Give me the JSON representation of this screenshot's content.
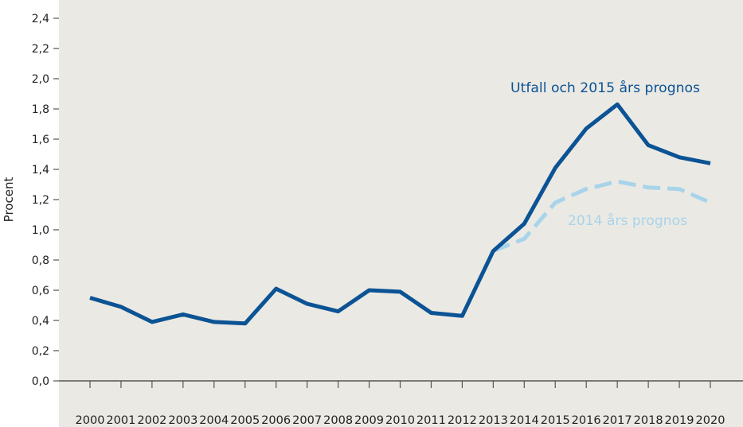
{
  "chart_data": {
    "type": "line",
    "title": "",
    "xlabel": "",
    "ylabel": "Procent",
    "ylim": [
      0,
      2.4
    ],
    "yticks": [
      "0,0",
      "0,2",
      "0,4",
      "0,6",
      "0,8",
      "1,0",
      "1,2",
      "1,4",
      "1,6",
      "1,8",
      "2,0",
      "2,2",
      "2,4"
    ],
    "x": [
      "2000",
      "2001",
      "2002",
      "2003",
      "2004",
      "2005",
      "2006",
      "2007",
      "2008",
      "2009",
      "2010",
      "2011",
      "2012",
      "2013",
      "2014",
      "2015",
      "2016",
      "2017",
      "2018",
      "2019",
      "2020"
    ],
    "grid": false,
    "legend": "inline labels",
    "series": [
      {
        "name": "Utfall och 2015 års prognos",
        "style": "solid",
        "color": "#0b5394",
        "x": [
          "2000",
          "2001",
          "2002",
          "2003",
          "2004",
          "2005",
          "2006",
          "2007",
          "2008",
          "2009",
          "2010",
          "2011",
          "2012",
          "2013",
          "2014",
          "2015",
          "2016",
          "2017",
          "2018",
          "2019",
          "2020"
        ],
        "values": [
          0.55,
          0.49,
          0.39,
          0.44,
          0.39,
          0.38,
          0.61,
          0.51,
          0.46,
          0.6,
          0.59,
          0.45,
          0.43,
          0.86,
          1.04,
          1.41,
          1.67,
          1.83,
          1.56,
          1.48,
          1.44
        ]
      },
      {
        "name": "2014 års prognos",
        "style": "dashed",
        "color": "#a8d4ea",
        "x": [
          "2013",
          "2014",
          "2015",
          "2016",
          "2017",
          "2018",
          "2019",
          "2020"
        ],
        "values": [
          0.86,
          0.94,
          1.18,
          1.27,
          1.32,
          1.28,
          1.27,
          1.18
        ]
      }
    ],
    "colors": {
      "background": "#ebe9e4",
      "axis": "#555555"
    }
  }
}
